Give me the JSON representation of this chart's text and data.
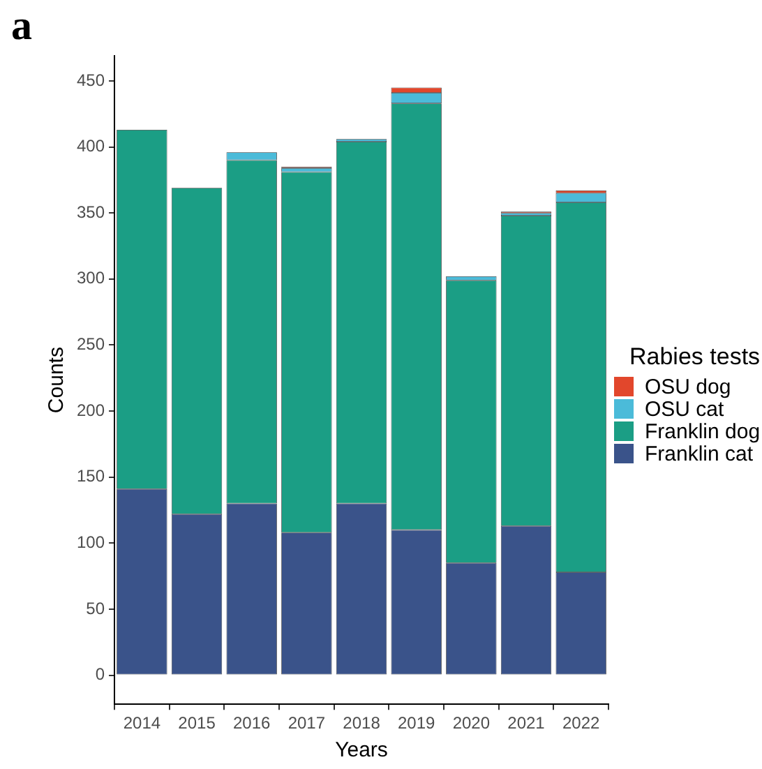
{
  "chart_data": {
    "type": "bar",
    "title": "a",
    "xlabel": "Years",
    "ylabel": "Counts",
    "legend_title": "Rabies tests",
    "categories": [
      "2014",
      "2015",
      "2016",
      "2017",
      "2018",
      "2019",
      "2020",
      "2021",
      "2022"
    ],
    "stacked": true,
    "ylim": [
      -22,
      469
    ],
    "yticks": [
      0,
      50,
      100,
      150,
      200,
      250,
      300,
      350,
      400,
      450
    ],
    "grid": false,
    "legend": "right",
    "series": [
      {
        "name": "Franklin cat",
        "color": "#3a538a",
        "values": [
          141,
          122,
          130,
          108,
          130,
          110,
          85,
          113,
          78
        ]
      },
      {
        "name": "Franklin dog",
        "color": "#1b9e85",
        "values": [
          272,
          247,
          260,
          273,
          274,
          323,
          214,
          235,
          280
        ]
      },
      {
        "name": "OSU cat",
        "color": "#4bbbd9",
        "values": [
          0,
          0,
          6,
          3,
          2,
          8,
          3,
          2,
          7
        ]
      },
      {
        "name": "OSU dog",
        "color": "#e2472c",
        "values": [
          0,
          0,
          0,
          1,
          0,
          4,
          0,
          1,
          2
        ]
      }
    ]
  }
}
